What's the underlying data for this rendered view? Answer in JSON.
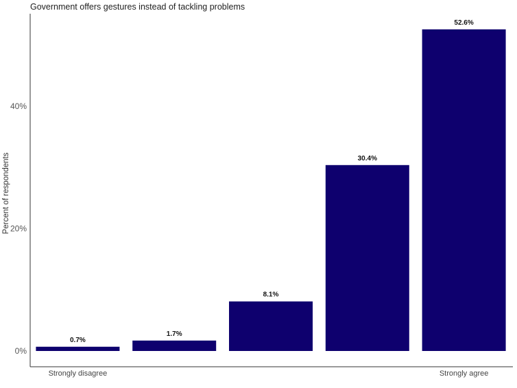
{
  "chart_data": {
    "type": "bar",
    "title": "Government offers gestures instead of tackling problems",
    "xlabel": "",
    "ylabel": "Percent of respondents",
    "categories": [
      "Strongly disagree",
      "",
      "",
      "",
      "Strongly agree"
    ],
    "values": [
      0.7,
      1.7,
      8.1,
      30.4,
      52.6
    ],
    "data_labels": [
      "0.7%",
      "1.7%",
      "8.1%",
      "30.4%",
      "52.6%"
    ],
    "yticks": [
      0,
      20,
      40
    ],
    "ytick_labels": [
      "0%",
      "20%",
      "40%"
    ],
    "ylim": [
      0,
      55
    ],
    "bar_color": "#0e006e",
    "grid": false,
    "legend": "none"
  }
}
